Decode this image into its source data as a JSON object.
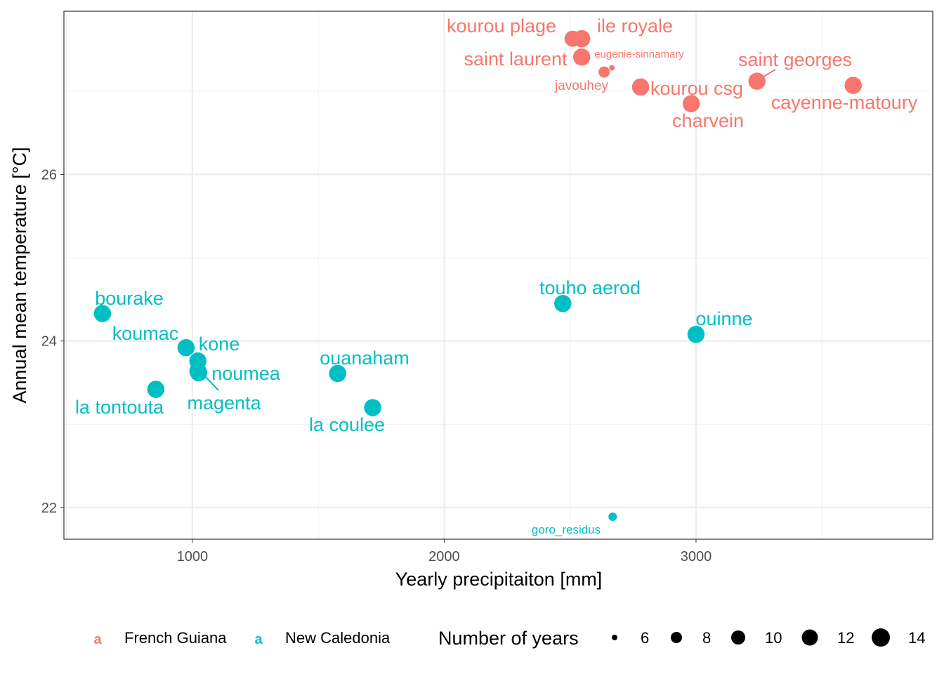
{
  "chart_data": {
    "type": "scatter",
    "title": "",
    "xlabel": "Yearly precipitaiton [mm]",
    "ylabel": "Annual mean temperature [°C]",
    "xlim": [
      490,
      3940
    ],
    "ylim": [
      21.62,
      27.96
    ],
    "xticks": [
      1000,
      2000,
      3000
    ],
    "yticks": [
      22,
      24,
      26
    ],
    "grid": true,
    "legend_position": "bottom",
    "colors": {
      "French Guiana": "#F8766D",
      "New Caledonia": "#00BFC4"
    },
    "color_legend": [
      "French Guiana",
      "New Caledonia"
    ],
    "size_legend": {
      "title": "Number of years",
      "values": [
        6,
        8,
        10,
        12,
        14
      ]
    },
    "points": [
      {
        "label": "kourou plage",
        "group": "French Guiana",
        "x": 2510,
        "y": 27.63,
        "years": 12
      },
      {
        "label": "ile royale",
        "group": "French Guiana",
        "x": 2546,
        "y": 27.63,
        "years": 13
      },
      {
        "label": "saint laurent",
        "group": "French Guiana",
        "x": 2546,
        "y": 27.41,
        "years": 13
      },
      {
        "label": "eugenie-sinnamary",
        "group": "French Guiana",
        "x": 2666,
        "y": 27.28,
        "years": 6
      },
      {
        "label": "javouhey",
        "group": "French Guiana",
        "x": 2635,
        "y": 27.23,
        "years": 8
      },
      {
        "label": "kourou csg",
        "group": "French Guiana",
        "x": 2780,
        "y": 27.05,
        "years": 13
      },
      {
        "label": "charvein",
        "group": "French Guiana",
        "x": 2981,
        "y": 26.85,
        "years": 13
      },
      {
        "label": "saint georges",
        "group": "French Guiana",
        "x": 3242,
        "y": 27.12,
        "years": 13
      },
      {
        "label": "cayenne-matoury",
        "group": "French Guiana",
        "x": 3624,
        "y": 27.07,
        "years": 13
      },
      {
        "label": "bourake",
        "group": "New Caledonia",
        "x": 643,
        "y": 24.33,
        "years": 13
      },
      {
        "label": "koumac",
        "group": "New Caledonia",
        "x": 975,
        "y": 23.92,
        "years": 13
      },
      {
        "label": "kone",
        "group": "New Caledonia",
        "x": 1022,
        "y": 23.76,
        "years": 13
      },
      {
        "label": "noumea",
        "group": "New Caledonia",
        "x": 1022,
        "y": 23.64,
        "years": 13
      },
      {
        "label": "magenta",
        "group": "New Caledonia",
        "x": 1025,
        "y": 23.62,
        "years": 13
      },
      {
        "label": "la tontouta",
        "group": "New Caledonia",
        "x": 855,
        "y": 23.42,
        "years": 13
      },
      {
        "label": "ouanaham",
        "group": "New Caledonia",
        "x": 1577,
        "y": 23.61,
        "years": 13
      },
      {
        "label": "la coulee",
        "group": "New Caledonia",
        "x": 1716,
        "y": 23.2,
        "years": 13
      },
      {
        "label": "touho aerod",
        "group": "New Caledonia",
        "x": 2471,
        "y": 24.45,
        "years": 13
      },
      {
        "label": "ouinne",
        "group": "New Caledonia",
        "x": 3000,
        "y": 24.08,
        "years": 13
      },
      {
        "label": "goro_residus",
        "group": "New Caledonia",
        "x": 2669,
        "y": 21.89,
        "years": 7
      }
    ]
  }
}
